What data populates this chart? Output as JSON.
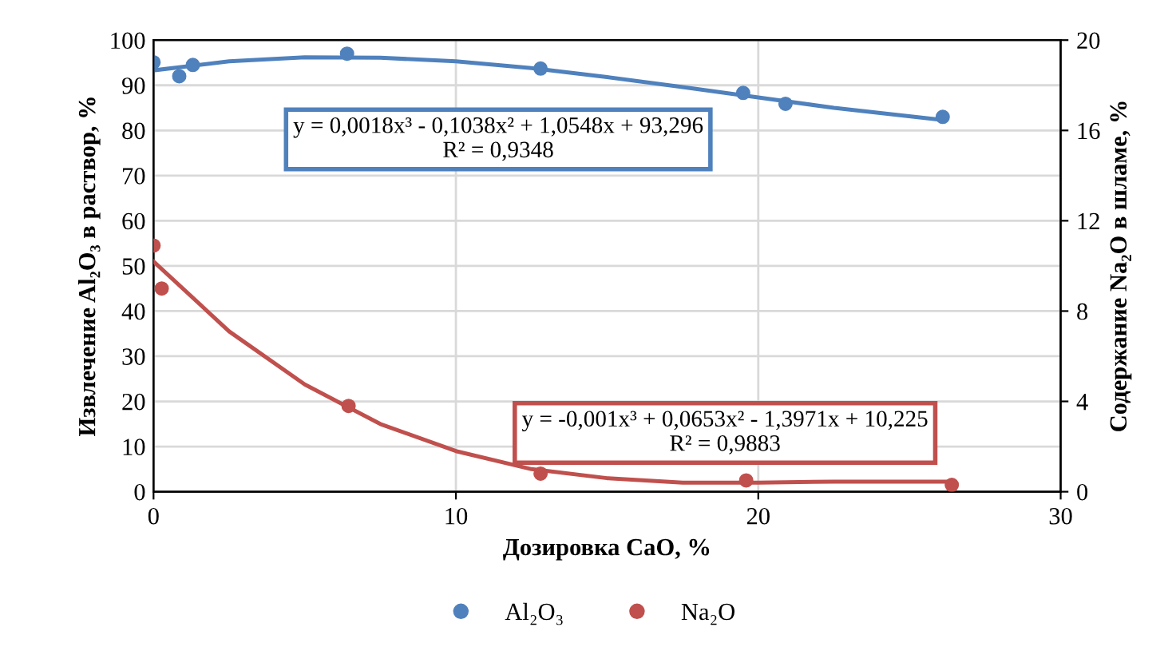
{
  "chart_data": {
    "type": "scatter",
    "xlabel": "Дозировка CaO, %",
    "ylabel": "Извлечение Al₂O₃ в раствор, %",
    "y2label": "Содержание Na₂O в шламе, %",
    "xlim": [
      0,
      30
    ],
    "xticks": [
      0,
      10,
      20,
      30
    ],
    "ylim": [
      0,
      100
    ],
    "yticks": [
      0,
      10,
      20,
      30,
      40,
      50,
      60,
      70,
      80,
      90,
      100
    ],
    "y2lim": [
      0,
      20
    ],
    "y2ticks": [
      0,
      4,
      8,
      12,
      16,
      20
    ],
    "grid": true,
    "legend": "bottom",
    "marker": "circle",
    "series": [
      {
        "name": "Al₂O₃",
        "color": "#4f81bd",
        "x": [
          0,
          0.85,
          1.3,
          6.4,
          12.8,
          19.5,
          20.9,
          26.1
        ],
        "values": [
          95.1,
          92,
          94.5,
          97,
          93.7,
          88.3,
          85.9,
          83
        ]
      },
      {
        "name": "Na₂O",
        "axis": "y2",
        "color": "#c0504d",
        "x": [
          0,
          0.27,
          6.45,
          12.8,
          19.6,
          26.4
        ],
        "values": [
          10.9,
          9.0,
          3.8,
          0.8,
          0.5,
          0.3
        ]
      },
      {
        "type": "line",
        "color": "#4f81bd",
        "marker": "none",
        "x": [
          0,
          2.5,
          5,
          7.5,
          10,
          12.5,
          15,
          17.5,
          20,
          22.5,
          26.1
        ],
        "values": [
          93.3,
          95.3,
          96.2,
          96.1,
          95.3,
          93.8,
          91.8,
          89.6,
          87.3,
          85.0,
          82.3
        ]
      },
      {
        "type": "line",
        "axis": "y2",
        "color": "#c0504d",
        "marker": "none",
        "x": [
          0,
          2.5,
          5,
          7.5,
          10,
          12.5,
          15,
          17.5,
          20,
          22.5,
          26.4
        ],
        "values": [
          10.2,
          7.1,
          4.75,
          3.0,
          1.8,
          1.0,
          0.6,
          0.4,
          0.4,
          0.45,
          0.45
        ]
      }
    ],
    "annotations": [
      "y = 0,0018x³ - 0,1038x² + 1,0548x + 93,296\nR² = 0,9348",
      "y = -0,001x³ + 0,0653x² - 1,3971x + 10,225\nR² = 0,9883"
    ]
  }
}
